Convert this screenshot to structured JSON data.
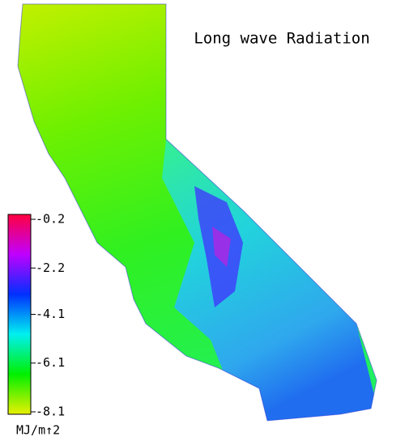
{
  "title": "Long wave Radiation",
  "colorbar": {
    "label": "MJ/m↑2",
    "lim": [
      -8.2,
      0
    ],
    "ticks": [
      -0.2,
      -2.2,
      -4.1,
      -6.1,
      -8.1
    ],
    "colors": [
      "#e8f000",
      "#00f000",
      "#00f0f0",
      "#0030ff",
      "#c000ff",
      "#ff0040"
    ]
  }
}
